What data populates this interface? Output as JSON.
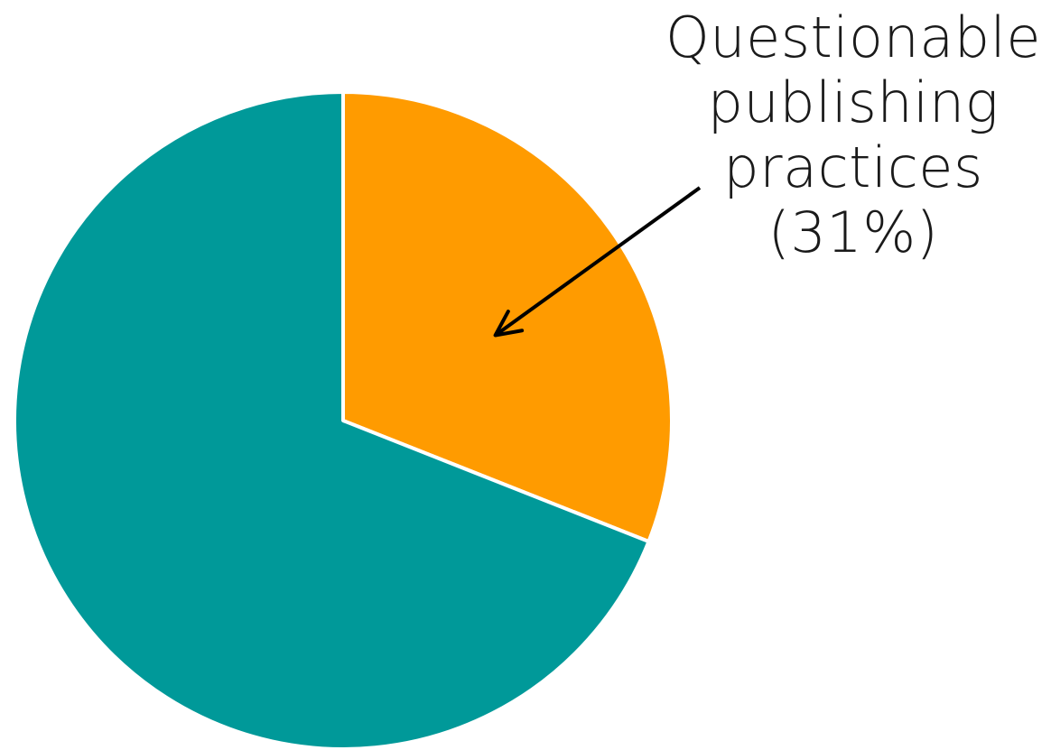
{
  "chart_data": {
    "type": "pie",
    "slices": [
      {
        "label": "Questionable publishing practices",
        "value": 31,
        "color": "#FF9B00"
      },
      {
        "label": "",
        "value": 69,
        "color": "#009999"
      }
    ],
    "start_angle_deg": 0,
    "direction": "clockwise",
    "slice_border_color": "#ffffff"
  },
  "annotation": {
    "lines": [
      "Questionable",
      "publishing",
      "practices",
      "(31%)"
    ],
    "arrow_color": "#000000"
  }
}
